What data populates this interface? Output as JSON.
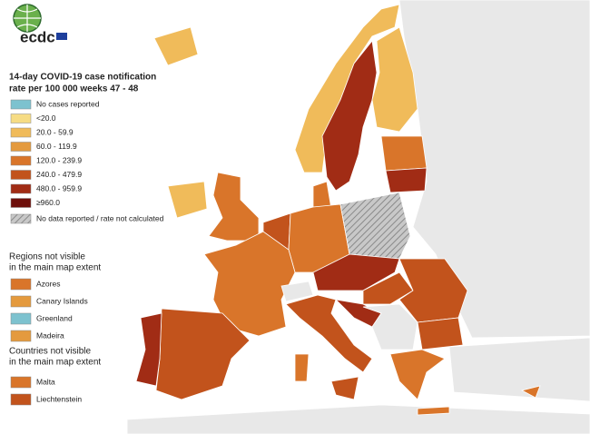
{
  "logo": "ecdc",
  "title_lines": [
    "14-day COVID-19 case notification",
    "rate per 100 000 weeks 47 - 48"
  ],
  "legend": [
    {
      "label": "No cases reported",
      "color": "#7dc2cf"
    },
    {
      "label": "<20.0",
      "color": "#f6dc84"
    },
    {
      "label": "20.0 - 59.9",
      "color": "#f0bb5a"
    },
    {
      "label": "60.0 - 119.9",
      "color": "#e49a3e"
    },
    {
      "label": "120.0 - 239.9",
      "color": "#d9752a"
    },
    {
      "label": "240.0 - 479.9",
      "color": "#c2531c"
    },
    {
      "label": "480.0 - 959.9",
      "color": "#a12c15"
    },
    {
      "label": "≥960.0",
      "color": "#6e0f0b"
    },
    {
      "label": "No data reported / rate not calculated",
      "color": "#b5b5b5",
      "hatched": true
    }
  ],
  "regions_heading": [
    "Regions not visible",
    "in the main map extent"
  ],
  "regions": [
    {
      "label": "Azores",
      "color": "#d9752a"
    },
    {
      "label": "Canary Islands",
      "color": "#e49a3e"
    },
    {
      "label": "Greenland",
      "color": "#7dc2cf"
    },
    {
      "label": "Madeira",
      "color": "#e49a3e"
    }
  ],
  "countries_heading": [
    "Countries not visible",
    "in the main map extent"
  ],
  "countries": [
    {
      "label": "Malta",
      "color": "#d9752a"
    },
    {
      "label": "Liechtenstein",
      "color": "#c2531c"
    }
  ]
}
